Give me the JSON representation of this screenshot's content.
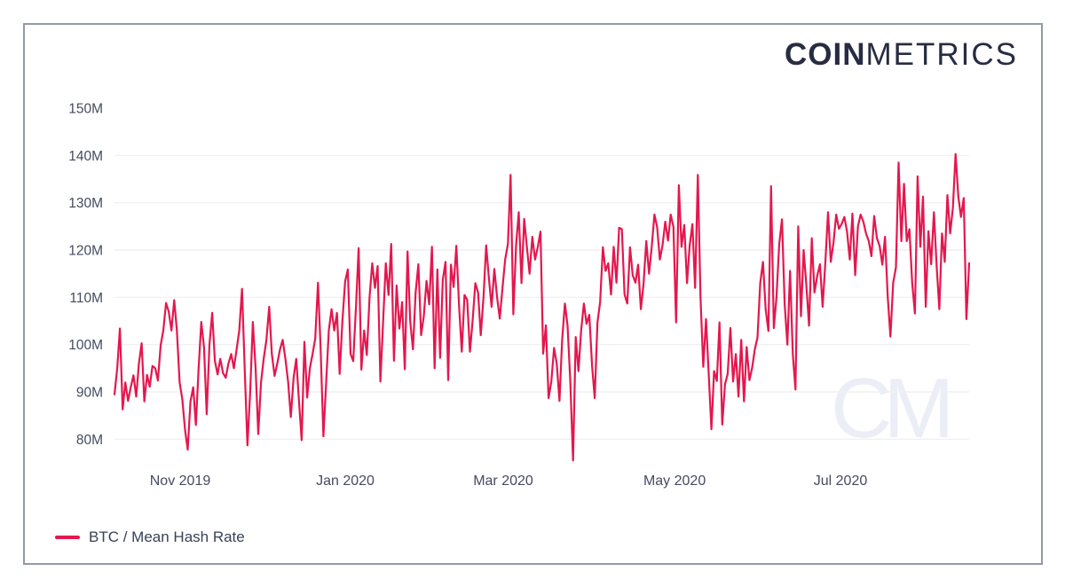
{
  "logo": {
    "bold": "COIN",
    "light": "METRICS"
  },
  "watermark": "CM",
  "legend": {
    "label": "BTC / Mean Hash Rate"
  },
  "colors": {
    "line": "#e4174e",
    "grid": "#f0f1f4",
    "axis_text": "#454b61",
    "border": "#939aa6",
    "logo": "#272c42",
    "watermark": "#ebeef6",
    "background": "#ffffff"
  },
  "chart_data": {
    "type": "line",
    "title": "",
    "xlabel": "",
    "ylabel": "",
    "unit": "M",
    "ylim": [
      75,
      152
    ],
    "grid": "horizontal-only",
    "legend_position": "bottom-left",
    "y_ticks": [
      {
        "label": "150M",
        "value": 150,
        "gridline": false
      },
      {
        "label": "140M",
        "value": 140,
        "gridline": true
      },
      {
        "label": "130M",
        "value": 130,
        "gridline": true
      },
      {
        "label": "120M",
        "value": 120,
        "gridline": true
      },
      {
        "label": "110M",
        "value": 110,
        "gridline": true
      },
      {
        "label": "100M",
        "value": 100,
        "gridline": true
      },
      {
        "label": "90M",
        "value": 90,
        "gridline": true
      },
      {
        "label": "80M",
        "value": 80,
        "gridline": true
      }
    ],
    "x_ticks": [
      {
        "label": "Nov 2019",
        "pos": 0.0768
      },
      {
        "label": "Jan 2020",
        "pos": 0.27
      },
      {
        "label": "Mar 2020",
        "pos": 0.4548
      },
      {
        "label": "May 2020",
        "pos": 0.6553
      },
      {
        "label": "Jul 2020",
        "pos": 0.8494
      }
    ],
    "series": [
      {
        "name": "BTC / Mean Hash Rate",
        "color": "#e4174e",
        "values": [
          89.5,
          95.0,
          103.4,
          86.3,
          92.0,
          88.1,
          91.0,
          93.5,
          89.0,
          96.0,
          100.3,
          88.0,
          93.6,
          91.1,
          95.5,
          95.0,
          92.4,
          99.8,
          103.0,
          108.8,
          107.0,
          103.0,
          109.4,
          103.0,
          92.0,
          88.5,
          82.0,
          77.8,
          88.0,
          91.0,
          83.0,
          95.0,
          104.8,
          99.4,
          85.3,
          100.0,
          106.7,
          96.6,
          93.7,
          97.0,
          94.0,
          93.0,
          96.0,
          98.0,
          95.0,
          99.0,
          103.0,
          111.8,
          95.0,
          78.7,
          90.0,
          104.8,
          95.0,
          81.1,
          92.0,
          97.0,
          101.0,
          108.0,
          98.0,
          93.4,
          96.0,
          99.0,
          101.0,
          97.0,
          92.0,
          84.7,
          93.0,
          97.0,
          88.0,
          79.8,
          100.6,
          88.8,
          95.0,
          98.0,
          101.3,
          113.1,
          99.0,
          80.6,
          92.0,
          103.0,
          107.5,
          103.0,
          106.7,
          93.8,
          105.0,
          113.4,
          115.9,
          98.0,
          96.5,
          108.0,
          120.4,
          94.7,
          103.0,
          97.8,
          110.0,
          117.2,
          112.0,
          116.6,
          92.2,
          105.0,
          117.2,
          110.5,
          121.3,
          96.6,
          112.5,
          103.4,
          109.0,
          94.8,
          119.7,
          105.0,
          99.0,
          111.0,
          117.0,
          102.0,
          106.0,
          113.5,
          108.5,
          120.7,
          95.0,
          115.9,
          97.2,
          113.7,
          117.5,
          92.5,
          116.9,
          112.2,
          120.9,
          108.0,
          98.5,
          110.5,
          109.5,
          98.5,
          105.0,
          113.0,
          111.0,
          102.0,
          110.0,
          121.0,
          114.0,
          108.0,
          116.0,
          110.0,
          105.5,
          112.0,
          118.0,
          121.3,
          135.9,
          106.4,
          121.0,
          128.0,
          113.0,
          126.6,
          120.6,
          115.0,
          122.8,
          118.0,
          120.6,
          123.9,
          98.1,
          104.1,
          88.7,
          92.2,
          99.3,
          96.0,
          88.1,
          101.0,
          108.7,
          104.0,
          92.2,
          75.5,
          101.6,
          94.4,
          103.0,
          108.7,
          104.4,
          106.3,
          95.6,
          88.7,
          104.7,
          109.0,
          120.6,
          115.6,
          117.2,
          110.6,
          120.7,
          113.1,
          124.7,
          124.4,
          110.6,
          108.7,
          120.6,
          114.7,
          113.1,
          116.9,
          107.5,
          112.8,
          121.9,
          115.0,
          120.6,
          127.5,
          124.9,
          118.0,
          121.0,
          126.0,
          122.0,
          127.5,
          124.9,
          104.7,
          133.7,
          120.7,
          125.3,
          113.0,
          121.0,
          125.5,
          112.0,
          135.9,
          110.0,
          95.3,
          105.4,
          94.0,
          82.1,
          94.4,
          92.3,
          104.7,
          83.1,
          91.6,
          93.8,
          103.5,
          92.2,
          98.0,
          89.0,
          101.0,
          88.0,
          99.5,
          92.5,
          95.0,
          99.0,
          101.5,
          113.0,
          117.5,
          107.5,
          102.9,
          133.5,
          103.5,
          110.0,
          121.3,
          126.5,
          108.7,
          100.0,
          115.6,
          98.0,
          90.5,
          125.0,
          106.0,
          120.0,
          112.5,
          104.0,
          122.5,
          111.0,
          114.5,
          117.0,
          108.0,
          117.5,
          128.0,
          117.5,
          121.5,
          127.5,
          124.5,
          125.5,
          127.0,
          123.9,
          118.0,
          127.7,
          114.7,
          125.0,
          127.5,
          126.0,
          123.5,
          121.9,
          118.7,
          127.2,
          122.5,
          120.9,
          116.9,
          122.8,
          110.0,
          101.7,
          113.1,
          116.3,
          138.5,
          121.9,
          134.0,
          121.9,
          124.4,
          113.1,
          106.6,
          135.6,
          120.7,
          131.3,
          108.0,
          124.0,
          117.0,
          128.0,
          116.9,
          107.5,
          123.5,
          117.5,
          131.6,
          123.5,
          129.0,
          140.3,
          131.3,
          127.0,
          131.0,
          105.4,
          117.2
        ]
      }
    ]
  }
}
